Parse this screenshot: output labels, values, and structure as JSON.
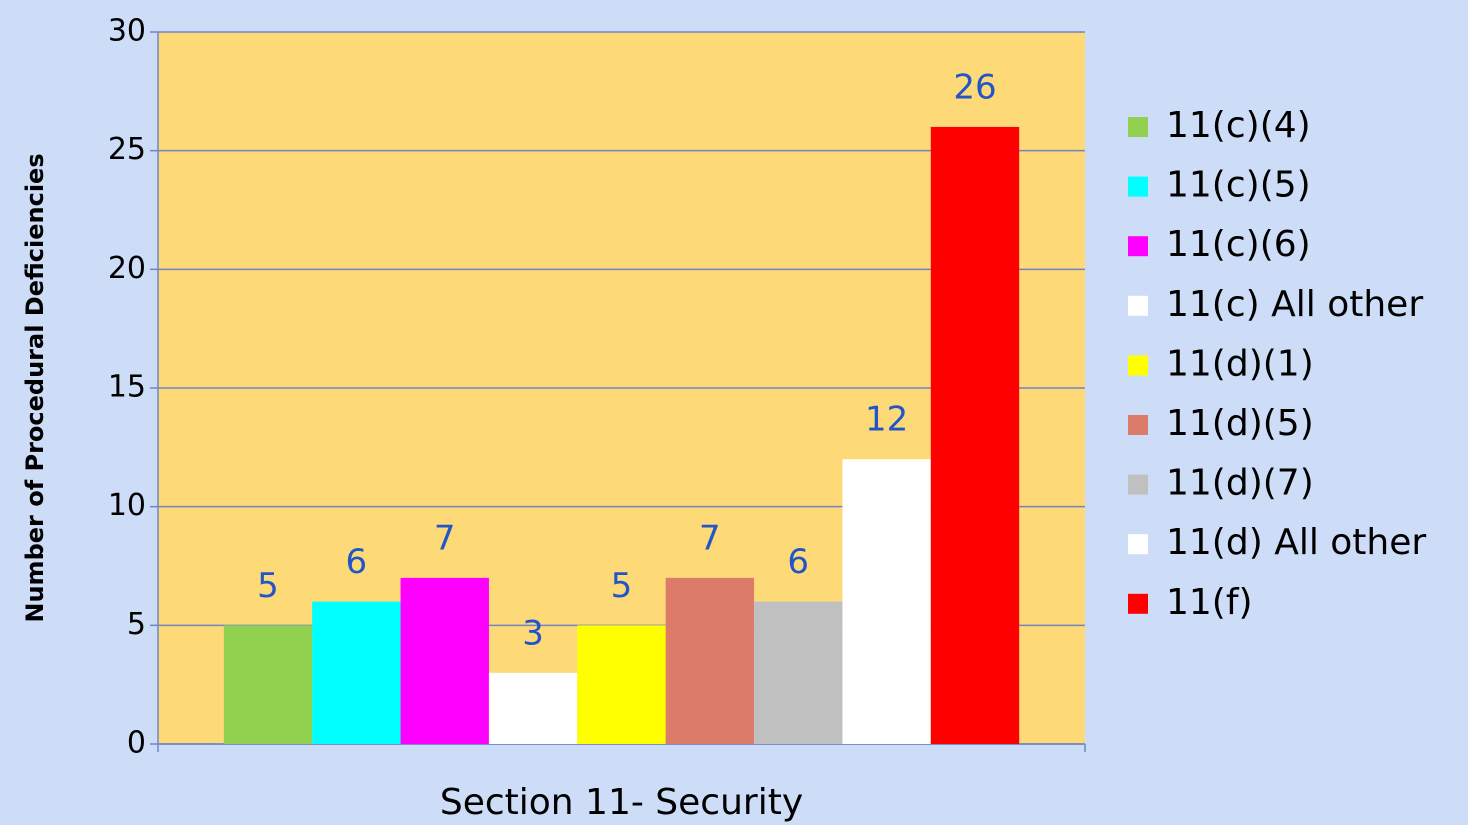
{
  "chart_data": {
    "type": "bar",
    "categories": [
      "Section 11- Security"
    ],
    "y_label": "Number of Procedural Deficiencies",
    "series": [
      {
        "name": "11(c)(4)",
        "color": "#92d050",
        "values": [
          5
        ]
      },
      {
        "name": "11(c)(5)",
        "color": "#00ffff",
        "values": [
          6
        ]
      },
      {
        "name": "11(c)(6)",
        "color": "#ff00ff",
        "values": [
          7
        ]
      },
      {
        "name": "11(c) All other",
        "color": "#ffffff",
        "values": [
          3
        ]
      },
      {
        "name": "11(d)(1)",
        "color": "#ffff00",
        "values": [
          5
        ]
      },
      {
        "name": "11(d)(5)",
        "color": "#dc7b69",
        "values": [
          7
        ]
      },
      {
        "name": "11(d)(7)",
        "color": "#c0c0c0",
        "values": [
          6
        ]
      },
      {
        "name": "11(d) All other",
        "color": "#ffffff",
        "values": [
          12
        ]
      },
      {
        "name": "11(f)",
        "color": "#ff0000",
        "values": [
          26
        ]
      }
    ],
    "ylim": [
      0,
      30
    ],
    "yticks": [
      0,
      5,
      10,
      15,
      20,
      25,
      30
    ],
    "grid": true,
    "legend": "right"
  }
}
